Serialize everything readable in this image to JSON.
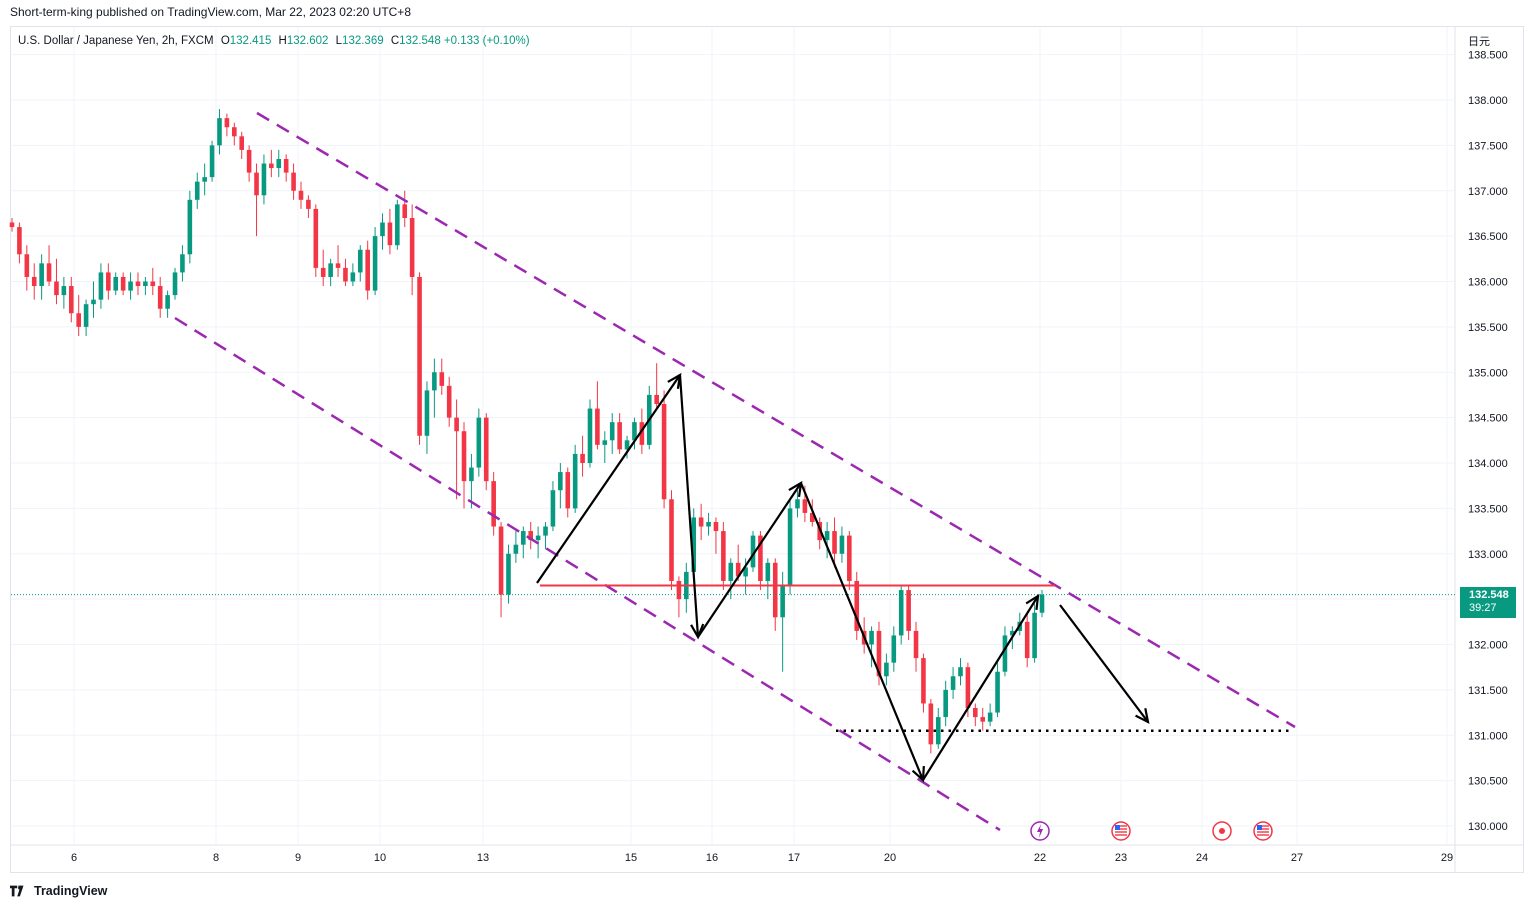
{
  "header": {
    "published_text": "Short-term-king published on TradingView.com, Mar 22, 2023 02:20 UTC+8"
  },
  "legend": {
    "symbol": "U.S. Dollar / Japanese Yen, 2h, FXCM",
    "open_label": "O",
    "open": "132.415",
    "high_label": "H",
    "high": "132.602",
    "low_label": "L",
    "low": "132.369",
    "close_label": "C",
    "close": "132.548",
    "change": "+0.133 (+0.10%)"
  },
  "axis_unit_label": "日元",
  "price_tag": {
    "price": "132.548",
    "countdown": "39:27"
  },
  "footer": {
    "brand": "TradingView"
  },
  "colors": {
    "up": "#089981",
    "down": "#f23645",
    "channel": "#9c27b0",
    "resistance": "#f23645",
    "arrows": "#000000",
    "grid": "#f0f3fa"
  },
  "chart_data": {
    "type": "candlestick",
    "ylim": [
      129.9,
      138.6
    ],
    "y_ticks": [
      "130.000",
      "130.500",
      "131.000",
      "131.500",
      "132.000",
      "132.500",
      "133.000",
      "133.500",
      "134.000",
      "134.500",
      "135.000",
      "135.500",
      "136.000",
      "136.500",
      "137.000",
      "137.500",
      "138.000",
      "138.500"
    ],
    "x_ticks": [
      "6",
      "8",
      "9",
      "10",
      "13",
      "15",
      "16",
      "17",
      "20",
      "22",
      "23",
      "24",
      "27",
      "29"
    ],
    "candles_ohlc": [
      [
        136.65,
        136.7,
        136.55,
        136.6
      ],
      [
        136.6,
        136.65,
        136.2,
        136.3
      ],
      [
        136.3,
        136.4,
        135.9,
        136.05
      ],
      [
        136.05,
        136.2,
        135.8,
        135.95
      ],
      [
        135.95,
        136.3,
        135.8,
        136.2
      ],
      [
        136.2,
        136.4,
        135.95,
        136.0
      ],
      [
        136.0,
        136.25,
        135.75,
        135.85
      ],
      [
        135.85,
        136.05,
        135.7,
        135.95
      ],
      [
        135.95,
        136.05,
        135.55,
        135.65
      ],
      [
        135.65,
        135.85,
        135.4,
        135.5
      ],
      [
        135.5,
        135.8,
        135.4,
        135.75
      ],
      [
        135.75,
        136.0,
        135.6,
        135.8
      ],
      [
        135.8,
        136.2,
        135.7,
        136.1
      ],
      [
        136.1,
        136.2,
        135.8,
        135.9
      ],
      [
        135.9,
        136.1,
        135.85,
        136.05
      ],
      [
        136.05,
        136.1,
        135.85,
        135.9
      ],
      [
        135.9,
        136.1,
        135.8,
        136.0
      ],
      [
        136.0,
        136.1,
        135.85,
        135.95
      ],
      [
        135.95,
        136.05,
        135.85,
        136.0
      ],
      [
        136.0,
        136.15,
        135.85,
        135.95
      ],
      [
        135.95,
        136.05,
        135.6,
        135.7
      ],
      [
        135.7,
        135.9,
        135.6,
        135.85
      ],
      [
        135.85,
        136.15,
        135.8,
        136.1
      ],
      [
        136.1,
        136.4,
        136.0,
        136.3
      ],
      [
        136.3,
        137.0,
        136.2,
        136.9
      ],
      [
        136.9,
        137.2,
        136.8,
        137.1
      ],
      [
        137.1,
        137.3,
        136.95,
        137.15
      ],
      [
        137.15,
        137.55,
        137.1,
        137.5
      ],
      [
        137.5,
        137.9,
        137.4,
        137.8
      ],
      [
        137.8,
        137.85,
        137.6,
        137.7
      ],
      [
        137.7,
        137.75,
        137.5,
        137.6
      ],
      [
        137.6,
        137.65,
        137.35,
        137.45
      ],
      [
        137.45,
        137.5,
        137.1,
        137.2
      ],
      [
        137.2,
        137.3,
        136.5,
        136.95
      ],
      [
        136.95,
        137.4,
        136.85,
        137.3
      ],
      [
        137.3,
        137.45,
        137.15,
        137.25
      ],
      [
        137.25,
        137.45,
        137.15,
        137.35
      ],
      [
        137.35,
        137.4,
        137.1,
        137.2
      ],
      [
        137.2,
        137.3,
        136.9,
        137.0
      ],
      [
        137.0,
        137.1,
        136.8,
        136.9
      ],
      [
        136.9,
        136.95,
        136.7,
        136.8
      ],
      [
        136.8,
        136.85,
        136.05,
        136.15
      ],
      [
        136.15,
        136.35,
        135.95,
        136.05
      ],
      [
        136.05,
        136.25,
        135.95,
        136.2
      ],
      [
        136.2,
        136.4,
        136.05,
        136.15
      ],
      [
        136.15,
        136.25,
        135.95,
        136.0
      ],
      [
        136.0,
        136.2,
        135.95,
        136.1
      ],
      [
        136.1,
        136.4,
        136.0,
        136.35
      ],
      [
        136.35,
        136.45,
        135.8,
        135.9
      ],
      [
        135.9,
        136.6,
        135.85,
        136.5
      ],
      [
        136.5,
        136.75,
        136.35,
        136.65
      ],
      [
        136.65,
        136.8,
        136.3,
        136.4
      ],
      [
        136.4,
        136.9,
        136.35,
        136.85
      ],
      [
        136.85,
        137.0,
        136.6,
        136.7
      ],
      [
        136.7,
        136.85,
        135.85,
        136.05
      ],
      [
        136.05,
        136.1,
        134.2,
        134.3
      ],
      [
        134.3,
        134.9,
        134.1,
        134.8
      ],
      [
        134.8,
        135.15,
        134.5,
        135.0
      ],
      [
        135.0,
        135.15,
        134.75,
        134.85
      ],
      [
        134.85,
        134.95,
        134.4,
        134.5
      ],
      [
        134.5,
        134.7,
        133.6,
        134.35
      ],
      [
        134.35,
        134.45,
        133.5,
        133.8
      ],
      [
        133.8,
        134.1,
        133.5,
        133.95
      ],
      [
        133.95,
        134.6,
        133.85,
        134.5
      ],
      [
        134.5,
        134.55,
        133.7,
        133.8
      ],
      [
        133.8,
        133.9,
        133.2,
        133.3
      ],
      [
        133.3,
        133.35,
        132.3,
        132.55
      ],
      [
        132.55,
        133.1,
        132.45,
        133.0
      ],
      [
        133.0,
        133.25,
        132.9,
        133.1
      ],
      [
        133.1,
        133.3,
        132.95,
        133.25
      ],
      [
        133.25,
        133.35,
        133.05,
        133.15
      ],
      [
        133.15,
        133.3,
        132.95,
        133.2
      ],
      [
        133.2,
        133.35,
        133.05,
        133.3
      ],
      [
        133.3,
        133.8,
        133.25,
        133.7
      ],
      [
        133.7,
        134.0,
        133.5,
        133.9
      ],
      [
        133.9,
        133.95,
        133.4,
        133.5
      ],
      [
        133.5,
        134.2,
        133.45,
        134.1
      ],
      [
        134.1,
        134.3,
        133.85,
        134.0
      ],
      [
        134.0,
        134.7,
        133.95,
        134.6
      ],
      [
        134.6,
        134.9,
        134.15,
        134.2
      ],
      [
        134.2,
        134.35,
        134.0,
        134.25
      ],
      [
        134.25,
        134.55,
        134.1,
        134.45
      ],
      [
        134.45,
        134.55,
        134.1,
        134.15
      ],
      [
        134.15,
        134.3,
        134.05,
        134.25
      ],
      [
        134.25,
        134.5,
        134.15,
        134.45
      ],
      [
        134.45,
        134.6,
        134.1,
        134.2
      ],
      [
        134.2,
        134.85,
        134.15,
        134.75
      ],
      [
        134.75,
        135.1,
        134.6,
        134.65
      ],
      [
        134.65,
        134.8,
        133.5,
        133.6
      ],
      [
        133.6,
        133.7,
        132.6,
        132.7
      ],
      [
        132.7,
        132.75,
        132.3,
        132.5
      ],
      [
        132.5,
        132.9,
        132.35,
        132.8
      ],
      [
        132.8,
        133.5,
        132.7,
        133.4
      ],
      [
        133.4,
        133.55,
        133.15,
        133.3
      ],
      [
        133.3,
        133.45,
        133.2,
        133.35
      ],
      [
        133.35,
        133.4,
        133.0,
        133.25
      ],
      [
        133.25,
        133.35,
        132.6,
        132.7
      ],
      [
        132.7,
        132.95,
        132.5,
        132.9
      ],
      [
        132.9,
        133.1,
        132.7,
        132.75
      ],
      [
        132.75,
        132.95,
        132.55,
        132.85
      ],
      [
        132.85,
        133.25,
        132.8,
        133.2
      ],
      [
        133.2,
        133.25,
        132.6,
        132.7
      ],
      [
        132.7,
        132.95,
        132.5,
        132.9
      ],
      [
        132.9,
        132.95,
        132.15,
        132.3
      ],
      [
        132.3,
        132.8,
        131.7,
        132.65
      ],
      [
        132.65,
        133.6,
        132.55,
        133.5
      ],
      [
        133.5,
        133.7,
        133.4,
        133.6
      ],
      [
        133.6,
        133.75,
        133.35,
        133.45
      ],
      [
        133.45,
        133.6,
        133.3,
        133.35
      ],
      [
        133.35,
        133.4,
        133.05,
        133.15
      ],
      [
        133.15,
        133.35,
        132.95,
        133.25
      ],
      [
        133.25,
        133.4,
        132.85,
        133.0
      ],
      [
        133.0,
        133.3,
        132.9,
        133.2
      ],
      [
        133.2,
        133.25,
        132.6,
        132.7
      ],
      [
        132.7,
        132.8,
        132.05,
        132.15
      ],
      [
        132.15,
        132.3,
        131.9,
        132.0
      ],
      [
        132.0,
        132.2,
        131.75,
        132.15
      ],
      [
        132.15,
        132.25,
        131.55,
        131.65
      ],
      [
        131.65,
        131.9,
        131.55,
        131.8
      ],
      [
        131.8,
        132.2,
        131.7,
        132.1
      ],
      [
        132.1,
        132.65,
        132.0,
        132.6
      ],
      [
        132.6,
        132.65,
        132.05,
        132.15
      ],
      [
        132.15,
        132.25,
        131.7,
        131.85
      ],
      [
        131.85,
        131.9,
        131.25,
        131.35
      ],
      [
        131.35,
        131.4,
        130.8,
        130.9
      ],
      [
        130.9,
        131.3,
        130.85,
        131.2
      ],
      [
        131.2,
        131.6,
        131.1,
        131.5
      ],
      [
        131.5,
        131.75,
        131.4,
        131.65
      ],
      [
        131.65,
        131.85,
        131.55,
        131.75
      ],
      [
        131.75,
        131.8,
        131.2,
        131.3
      ],
      [
        131.3,
        131.35,
        131.1,
        131.2
      ],
      [
        131.2,
        131.3,
        131.05,
        131.15
      ],
      [
        131.15,
        131.35,
        131.1,
        131.25
      ],
      [
        131.25,
        131.8,
        131.2,
        131.7
      ],
      [
        131.7,
        132.2,
        131.65,
        132.1
      ],
      [
        132.1,
        132.2,
        131.95,
        132.15
      ],
      [
        132.15,
        132.35,
        132.1,
        132.25
      ],
      [
        132.25,
        132.35,
        131.75,
        131.85
      ],
      [
        131.85,
        132.45,
        131.8,
        132.35
      ],
      [
        132.35,
        132.6,
        132.3,
        132.55
      ]
    ],
    "annotations": {
      "channel_upper": [
        [
          1,
          137.9
        ],
        [
          5,
          134.2
        ],
        [
          14,
          131.2
        ]
      ],
      "channel_lower": [
        [
          0,
          135.6
        ],
        [
          1,
          134.0
        ],
        [
          2,
          132.6
        ],
        [
          3,
          130.0
        ]
      ],
      "resistance": 132.65,
      "support": 131.05,
      "zigzag_prices": [
        132.65,
        135.0,
        132.05,
        133.8,
        130.5,
        132.55
      ],
      "projection_to": 131.15
    }
  }
}
